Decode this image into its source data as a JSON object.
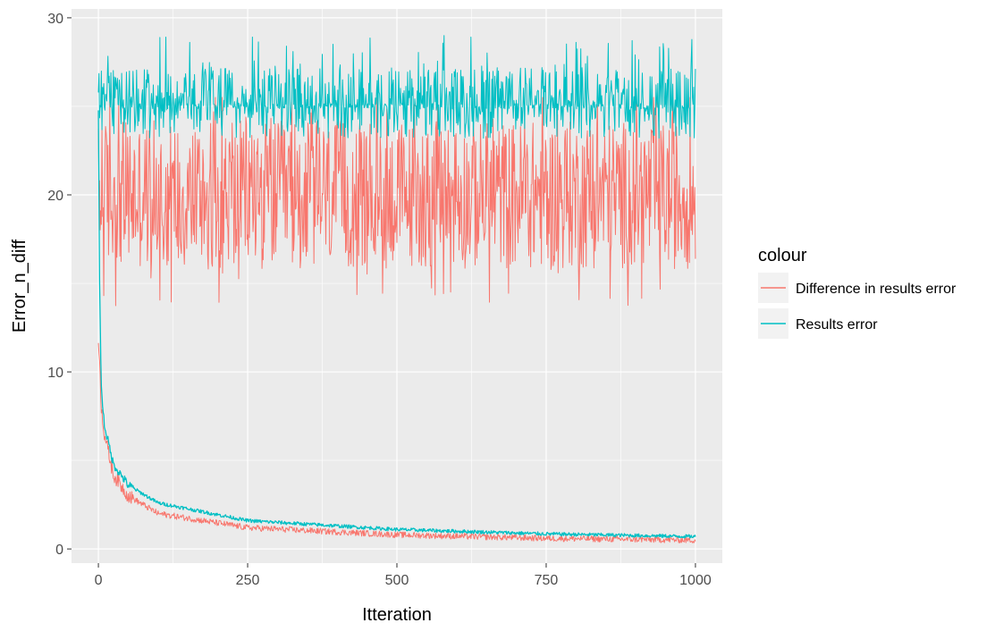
{
  "chart_data": {
    "type": "line",
    "title": "",
    "xlabel": "Itteration",
    "ylabel": "Error_n_diff",
    "xlim": [
      -45,
      1045
    ],
    "ylim": [
      -0.8,
      30.5
    ],
    "x_ticks": [
      0,
      250,
      500,
      750,
      1000
    ],
    "y_ticks": [
      0,
      10,
      20,
      30
    ],
    "grid": true,
    "legend": {
      "title": "colour",
      "position": "right"
    },
    "colors": {
      "panel_background": "#ebebeb",
      "grid": "#ffffff"
    },
    "series": [
      {
        "name": "Difference in results error",
        "color": "#f8766d",
        "regimes": [
          {
            "description": "high regime",
            "x_range": [
              0,
              1000
            ],
            "mean": 20,
            "min": 13.5,
            "max": 25.5
          },
          {
            "description": "decay regime",
            "x": [
              0,
              5,
              10,
              25,
              50,
              100,
              250,
              500,
              750,
              1000
            ],
            "y": [
              12,
              8,
              6.5,
              4.2,
              3.0,
              2.0,
              1.2,
              0.8,
              0.6,
              0.5
            ]
          }
        ]
      },
      {
        "name": "Results error",
        "color": "#00bfc4",
        "regimes": [
          {
            "description": "high regime",
            "x_range": [
              0,
              1000
            ],
            "mean": 25,
            "min": 23,
            "max": 29
          }
        ],
        "x": [
          0,
          2,
          5,
          10,
          25,
          50,
          100,
          250,
          500,
          750,
          1000
        ],
        "y": [
          25,
          15,
          9,
          7,
          4.8,
          3.6,
          2.6,
          1.6,
          1.1,
          0.85,
          0.7
        ]
      }
    ]
  }
}
